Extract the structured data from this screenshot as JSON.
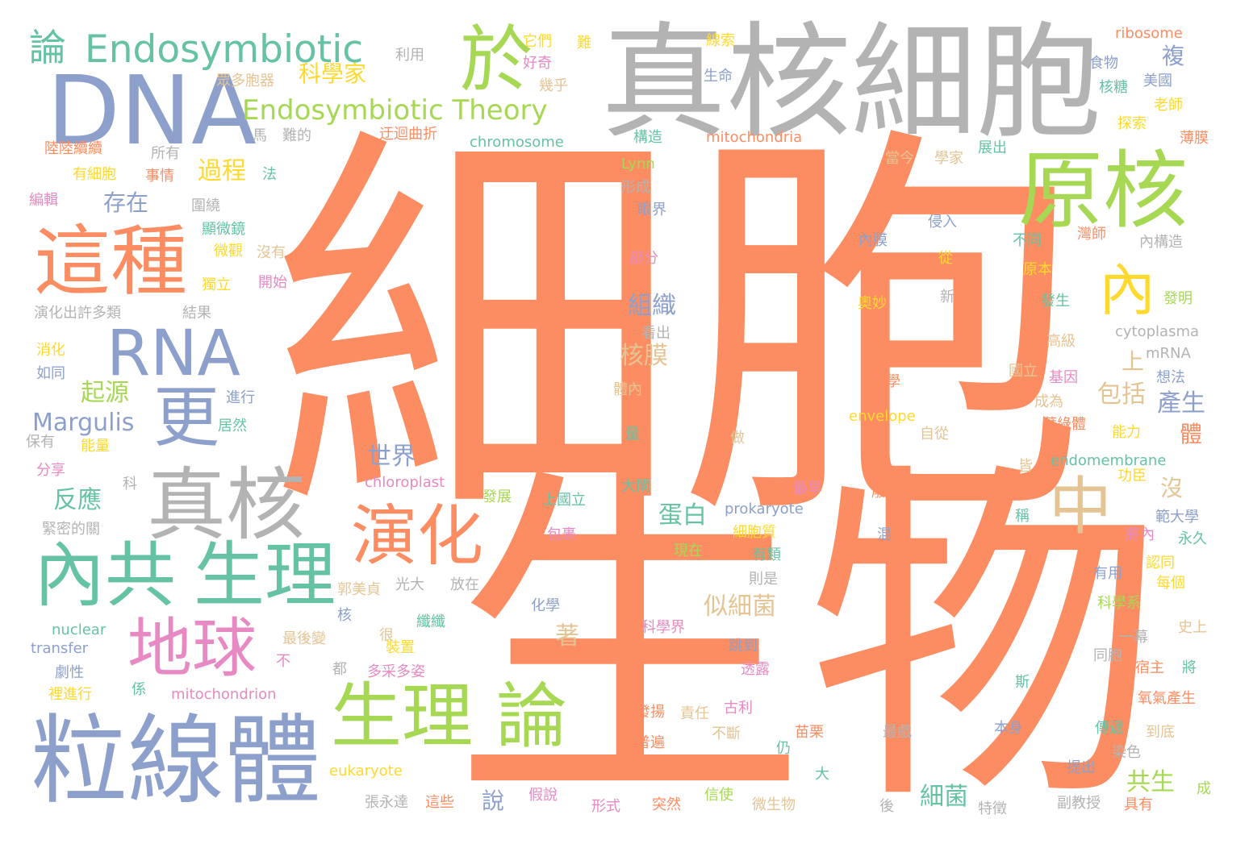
{
  "palette": {
    "orange": "#fc8d62",
    "blue": "#8da0cb",
    "teal": "#66c2a5",
    "green": "#a6d854",
    "gray": "#b3b3b3",
    "pink": "#e78ac3",
    "yellow": "#ffd92f",
    "tan": "#e5c494"
  },
  "words": [
    {
      "text": "細胞",
      "color": "orange",
      "weight": 1.0
    },
    {
      "text": "生物",
      "color": "orange",
      "weight": 0.86
    },
    {
      "text": "真核細胞",
      "color": "gray",
      "weight": 0.6
    },
    {
      "text": "DNA",
      "color": "blue",
      "weight": 0.48
    },
    {
      "text": "粒線體",
      "color": "blue",
      "weight": 0.46
    },
    {
      "text": "原核",
      "color": "green",
      "weight": 0.4
    },
    {
      "text": "這種",
      "color": "orange",
      "weight": 0.38
    },
    {
      "text": "真核",
      "color": "gray",
      "weight": 0.38
    },
    {
      "text": "於",
      "color": "green",
      "weight": 0.36
    },
    {
      "text": "內共",
      "color": "teal",
      "weight": 0.33
    },
    {
      "text": "生理",
      "color": "teal",
      "weight": 0.33
    },
    {
      "text": "生理",
      "color": "green",
      "weight": 0.33
    },
    {
      "text": "論",
      "color": "green",
      "weight": 0.33
    },
    {
      "text": "地球",
      "color": "pink",
      "weight": 0.32
    },
    {
      "text": "RNA",
      "color": "blue",
      "weight": 0.3
    },
    {
      "text": "更",
      "color": "blue",
      "weight": 0.3
    },
    {
      "text": "演化",
      "color": "orange",
      "weight": 0.3
    },
    {
      "text": "中",
      "color": "tan",
      "weight": 0.27
    },
    {
      "text": "內",
      "color": "yellow",
      "weight": 0.24
    },
    {
      "text": "論",
      "color": "teal",
      "weight": 0.18
    },
    {
      "text": "Endosymbiotic",
      "color": "teal",
      "weight": 0.2
    },
    {
      "text": "Endosymbiotic Theory",
      "color": "green",
      "weight": 0.15
    },
    {
      "text": "科學家",
      "color": "yellow",
      "weight": 0.12
    },
    {
      "text": "過程",
      "color": "yellow",
      "weight": 0.12
    },
    {
      "text": "存在",
      "color": "blue",
      "weight": 0.11
    },
    {
      "text": "Margulis",
      "color": "blue",
      "weight": 0.11
    },
    {
      "text": "起源",
      "color": "green",
      "weight": 0.11
    },
    {
      "text": "反應",
      "color": "teal",
      "weight": 0.11
    },
    {
      "text": "世界",
      "color": "blue",
      "weight": 0.11
    },
    {
      "text": "組織",
      "color": "blue",
      "weight": 0.11
    },
    {
      "text": "核膜",
      "color": "tan",
      "weight": 0.11
    },
    {
      "text": "蛋白",
      "color": "teal",
      "weight": 0.11
    },
    {
      "text": "似細菌",
      "color": "tan",
      "weight": 0.11
    },
    {
      "text": "包括",
      "color": "tan",
      "weight": 0.11
    },
    {
      "text": "產生",
      "color": "blue",
      "weight": 0.11
    },
    {
      "text": "細菌",
      "color": "teal",
      "weight": 0.11
    },
    {
      "text": "共生",
      "color": "green",
      "weight": 0.11
    },
    {
      "text": "著",
      "color": "tan",
      "weight": 0.11
    },
    {
      "text": "說",
      "color": "blue",
      "weight": 0.1
    },
    {
      "text": "沒",
      "color": "tan",
      "weight": 0.1
    },
    {
      "text": "體",
      "color": "orange",
      "weight": 0.1
    },
    {
      "text": "上",
      "color": "tan",
      "weight": 0.1
    },
    {
      "text": "複",
      "color": "blue",
      "weight": 0.1
    },
    {
      "text": "利用",
      "color": "gray",
      "weight": 0.08
    },
    {
      "text": "眾多胞器",
      "color": "tan",
      "weight": 0.07
    },
    {
      "text": "陸陸續續",
      "color": "orange",
      "weight": 0.07
    },
    {
      "text": "所有",
      "color": "gray",
      "weight": 0.07
    },
    {
      "text": "有細胞",
      "color": "yellow",
      "weight": 0.07
    },
    {
      "text": "事情",
      "color": "orange",
      "weight": 0.07
    },
    {
      "text": "法",
      "color": "teal",
      "weight": 0.07
    },
    {
      "text": "編輯",
      "color": "pink",
      "weight": 0.07
    },
    {
      "text": "圍繞",
      "color": "gray",
      "weight": 0.07
    },
    {
      "text": "顯微鏡",
      "color": "teal",
      "weight": 0.07
    },
    {
      "text": "微觀",
      "color": "yellow",
      "weight": 0.07
    },
    {
      "text": "沒有",
      "color": "tan",
      "weight": 0.07
    },
    {
      "text": "獨立",
      "color": "yellow",
      "weight": 0.07
    },
    {
      "text": "開始",
      "color": "pink",
      "weight": 0.07
    },
    {
      "text": "演化出許多類",
      "color": "gray",
      "weight": 0.07
    },
    {
      "text": "結果",
      "color": "gray",
      "weight": 0.07
    },
    {
      "text": "消化",
      "color": "yellow",
      "weight": 0.07
    },
    {
      "text": "如同",
      "color": "blue",
      "weight": 0.07
    },
    {
      "text": "進行",
      "color": "blue",
      "weight": 0.07
    },
    {
      "text": "居然",
      "color": "teal",
      "weight": 0.07
    },
    {
      "text": "保有",
      "color": "gray",
      "weight": 0.07
    },
    {
      "text": "能量",
      "color": "yellow",
      "weight": 0.07
    },
    {
      "text": "分享",
      "color": "pink",
      "weight": 0.07
    },
    {
      "text": "科",
      "color": "gray",
      "weight": 0.07
    },
    {
      "text": "緊密的關",
      "color": "gray",
      "weight": 0.07
    },
    {
      "text": "馬",
      "color": "gray",
      "weight": 0.07
    },
    {
      "text": "難的",
      "color": "gray",
      "weight": 0.07
    },
    {
      "text": "迂迴曲折",
      "color": "orange",
      "weight": 0.07
    },
    {
      "text": "chromosome",
      "color": "teal",
      "weight": 0.07
    },
    {
      "text": "它們",
      "color": "yellow",
      "weight": 0.07
    },
    {
      "text": "好奇",
      "color": "pink",
      "weight": 0.07
    },
    {
      "text": "難",
      "color": "yellow",
      "weight": 0.07
    },
    {
      "text": "幾乎",
      "color": "tan",
      "weight": 0.07
    },
    {
      "text": "線索",
      "color": "yellow",
      "weight": 0.07
    },
    {
      "text": "生命",
      "color": "blue",
      "weight": 0.07
    },
    {
      "text": "構造",
      "color": "teal",
      "weight": 0.07
    },
    {
      "text": "mitochondria",
      "color": "orange",
      "weight": 0.07
    },
    {
      "text": "Lynn",
      "color": "green",
      "weight": 0.07
    },
    {
      "text": "形成",
      "color": "gray",
      "weight": 0.07
    },
    {
      "text": "眼界",
      "color": "blue",
      "weight": 0.07
    },
    {
      "text": "部分",
      "color": "pink",
      "weight": 0.07
    },
    {
      "text": "看出",
      "color": "gray",
      "weight": 0.07
    },
    {
      "text": "體內",
      "color": "tan",
      "weight": 0.07
    },
    {
      "text": "量",
      "color": "teal",
      "weight": 0.07
    },
    {
      "text": "做",
      "color": "tan",
      "weight": 0.07
    },
    {
      "text": "大閘",
      "color": "teal",
      "weight": 0.07
    },
    {
      "text": "上國立",
      "color": "teal",
      "weight": 0.07
    },
    {
      "text": "發展",
      "color": "green",
      "weight": 0.07
    },
    {
      "text": "chloroplast",
      "color": "pink",
      "weight": 0.07
    },
    {
      "text": "prokaryote",
      "color": "blue",
      "weight": 0.07
    },
    {
      "text": "細胞質",
      "color": "yellow",
      "weight": 0.07
    },
    {
      "text": "現在",
      "color": "green",
      "weight": 0.07
    },
    {
      "text": "有類",
      "color": "teal",
      "weight": 0.07
    },
    {
      "text": "包裹",
      "color": "pink",
      "weight": 0.07
    },
    {
      "text": "則是",
      "color": "gray",
      "weight": 0.07
    },
    {
      "text": "化學",
      "color": "blue",
      "weight": 0.07
    },
    {
      "text": "郭美貞",
      "color": "tan",
      "weight": 0.07
    },
    {
      "text": "光大",
      "color": "gray",
      "weight": 0.07
    },
    {
      "text": "放在",
      "color": "gray",
      "weight": 0.07
    },
    {
      "text": "nuclear",
      "color": "teal",
      "weight": 0.07
    },
    {
      "text": "transfer",
      "color": "blue",
      "weight": 0.07
    },
    {
      "text": "劇性",
      "color": "blue",
      "weight": 0.07
    },
    {
      "text": "裡進行",
      "color": "yellow",
      "weight": 0.07
    },
    {
      "text": "係",
      "color": "teal",
      "weight": 0.07
    },
    {
      "text": "mitochondrion",
      "color": "pink",
      "weight": 0.07
    },
    {
      "text": "核",
      "color": "blue",
      "weight": 0.07
    },
    {
      "text": "最後變",
      "color": "tan",
      "weight": 0.07
    },
    {
      "text": "不",
      "color": "pink",
      "weight": 0.07
    },
    {
      "text": "很",
      "color": "tan",
      "weight": 0.07
    },
    {
      "text": "裝置",
      "color": "yellow",
      "weight": 0.07
    },
    {
      "text": "纖纖",
      "color": "teal",
      "weight": 0.07
    },
    {
      "text": "都",
      "color": "gray",
      "weight": 0.07
    },
    {
      "text": "多采多姿",
      "color": "pink",
      "weight": 0.07
    },
    {
      "text": "科學界",
      "color": "pink",
      "weight": 0.07
    },
    {
      "text": "跳到",
      "color": "blue",
      "weight": 0.07
    },
    {
      "text": "透露",
      "color": "pink",
      "weight": 0.07
    },
    {
      "text": "發揚",
      "color": "orange",
      "weight": 0.07
    },
    {
      "text": "責任",
      "color": "tan",
      "weight": 0.07
    },
    {
      "text": "古利",
      "color": "pink",
      "weight": 0.07
    },
    {
      "text": "不斷",
      "color": "tan",
      "weight": 0.07
    },
    {
      "text": "普遍",
      "color": "orange",
      "weight": 0.07
    },
    {
      "text": "苗栗",
      "color": "orange",
      "weight": 0.07
    },
    {
      "text": "仍",
      "color": "teal",
      "weight": 0.07
    },
    {
      "text": "大",
      "color": "teal",
      "weight": 0.07
    },
    {
      "text": "eukaryote",
      "color": "yellow",
      "weight": 0.07
    },
    {
      "text": "張永達",
      "color": "gray",
      "weight": 0.07
    },
    {
      "text": "這些",
      "color": "orange",
      "weight": 0.07
    },
    {
      "text": "假說",
      "color": "pink",
      "weight": 0.07
    },
    {
      "text": "形式",
      "color": "pink",
      "weight": 0.07
    },
    {
      "text": "突然",
      "color": "orange",
      "weight": 0.07
    },
    {
      "text": "信使",
      "color": "green",
      "weight": 0.07
    },
    {
      "text": "微生物",
      "color": "tan",
      "weight": 0.07
    },
    {
      "text": "ribosome",
      "color": "orange",
      "weight": 0.07
    },
    {
      "text": "食物",
      "color": "blue",
      "weight": 0.07
    },
    {
      "text": "美國",
      "color": "blue",
      "weight": 0.07
    },
    {
      "text": "核糖",
      "color": "teal",
      "weight": 0.07
    },
    {
      "text": "老師",
      "color": "yellow",
      "weight": 0.07
    },
    {
      "text": "探索",
      "color": "yellow",
      "weight": 0.07
    },
    {
      "text": "薄膜",
      "color": "orange",
      "weight": 0.07
    },
    {
      "text": "當今",
      "color": "tan",
      "weight": 0.07
    },
    {
      "text": "學家",
      "color": "tan",
      "weight": 0.07
    },
    {
      "text": "展出",
      "color": "teal",
      "weight": 0.07
    },
    {
      "text": "侵入",
      "color": "blue",
      "weight": 0.07
    },
    {
      "text": "內膜",
      "color": "blue",
      "weight": 0.07
    },
    {
      "text": "從",
      "color": "yellow",
      "weight": 0.07
    },
    {
      "text": "不同",
      "color": "teal",
      "weight": 0.07
    },
    {
      "text": "灣師",
      "color": "orange",
      "weight": 0.07
    },
    {
      "text": "內構造",
      "color": "gray",
      "weight": 0.07
    },
    {
      "text": "原本",
      "color": "yellow",
      "weight": 0.07
    },
    {
      "text": "奧妙",
      "color": "yellow",
      "weight": 0.07
    },
    {
      "text": "新",
      "color": "gray",
      "weight": 0.07
    },
    {
      "text": "發生",
      "color": "teal",
      "weight": 0.07
    },
    {
      "text": "發明",
      "color": "green",
      "weight": 0.07
    },
    {
      "text": "cytoplasma",
      "color": "gray",
      "weight": 0.07
    },
    {
      "text": "高級",
      "color": "tan",
      "weight": 0.07
    },
    {
      "text": "mRNA",
      "color": "gray",
      "weight": 0.07
    },
    {
      "text": "國立",
      "color": "tan",
      "weight": 0.07
    },
    {
      "text": "中學",
      "color": "orange",
      "weight": 0.07
    },
    {
      "text": "基因",
      "color": "pink",
      "weight": 0.07
    },
    {
      "text": "想法",
      "color": "blue",
      "weight": 0.07
    },
    {
      "text": "envelope",
      "color": "yellow",
      "weight": 0.07
    },
    {
      "text": "成為",
      "color": "tan",
      "weight": 0.07
    },
    {
      "text": "自從",
      "color": "tan",
      "weight": 0.07
    },
    {
      "text": "葉綠體",
      "color": "orange",
      "weight": 0.07
    },
    {
      "text": "能力",
      "color": "yellow",
      "weight": 0.07
    },
    {
      "text": "endomembrane",
      "color": "teal",
      "weight": 0.07
    },
    {
      "text": "皆",
      "color": "tan",
      "weight": 0.07
    },
    {
      "text": "出現",
      "color": "orange",
      "weight": 0.07
    },
    {
      "text": "功臣",
      "color": "yellow",
      "weight": 0.07
    },
    {
      "text": "最早",
      "color": "pink",
      "weight": 0.07
    },
    {
      "text": "廢物則",
      "color": "orange",
      "weight": 0.07
    },
    {
      "text": "稱",
      "color": "teal",
      "weight": 0.07
    },
    {
      "text": "範大學",
      "color": "blue",
      "weight": 0.07
    },
    {
      "text": "混",
      "color": "blue",
      "weight": 0.07
    },
    {
      "text": "內發",
      "color": "orange",
      "weight": 0.07
    },
    {
      "text": "將內",
      "color": "pink",
      "weight": 0.07
    },
    {
      "text": "永久",
      "color": "teal",
      "weight": 0.07
    },
    {
      "text": "有用",
      "color": "blue",
      "weight": 0.07
    },
    {
      "text": "認同",
      "color": "yellow",
      "weight": 0.07
    },
    {
      "text": "每個",
      "color": "yellow",
      "weight": 0.07
    },
    {
      "text": "科學系",
      "color": "green",
      "weight": 0.07
    },
    {
      "text": "一幕",
      "color": "gray",
      "weight": 0.07
    },
    {
      "text": "史上",
      "color": "tan",
      "weight": 0.07
    },
    {
      "text": "同胞",
      "color": "gray",
      "weight": 0.07
    },
    {
      "text": "宿主",
      "color": "orange",
      "weight": 0.07
    },
    {
      "text": "將",
      "color": "teal",
      "weight": 0.07
    },
    {
      "text": "斯",
      "color": "teal",
      "weight": 0.07
    },
    {
      "text": "氧氣產生",
      "color": "orange",
      "weight": 0.07
    },
    {
      "text": "最戲",
      "color": "gray",
      "weight": 0.07
    },
    {
      "text": "本身",
      "color": "blue",
      "weight": 0.07
    },
    {
      "text": "傳遞",
      "color": "teal",
      "weight": 0.07
    },
    {
      "text": "到底",
      "color": "tan",
      "weight": 0.07
    },
    {
      "text": "染色",
      "color": "gray",
      "weight": 0.07
    },
    {
      "text": "提出",
      "color": "blue",
      "weight": 0.07
    },
    {
      "text": "後",
      "color": "gray",
      "weight": 0.07
    },
    {
      "text": "特徵",
      "color": "gray",
      "weight": 0.07
    },
    {
      "text": "副教授",
      "color": "gray",
      "weight": 0.07
    },
    {
      "text": "具有",
      "color": "orange",
      "weight": 0.07
    },
    {
      "text": "成",
      "color": "green",
      "weight": 0.07
    }
  ]
}
